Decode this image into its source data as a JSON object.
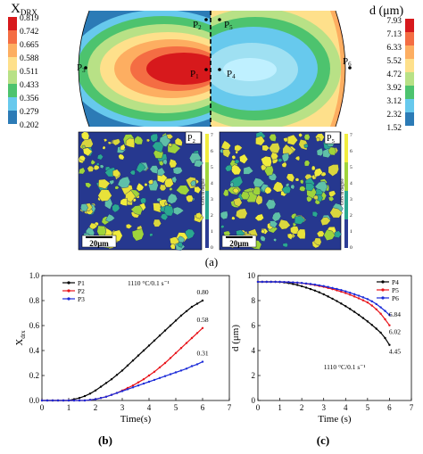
{
  "figure": {
    "panel_a_label": "(a)",
    "panel_b_label": "(b)",
    "panel_c_label": "(c)",
    "left_scale": {
      "title_main": "X",
      "title_sub": "DRX",
      "values": [
        "0.819",
        "0.742",
        "0.665",
        "0.588",
        "0.511",
        "0.433",
        "0.356",
        "0.279",
        "0.202"
      ]
    },
    "right_scale": {
      "title": "d (μm)",
      "values": [
        "7.93",
        "7.13",
        "6.33",
        "5.52",
        "4.72",
        "3.92",
        "3.12",
        "2.32",
        "1.52"
      ]
    },
    "points": {
      "p1": "P",
      "p1_sub": "1",
      "p2": "P",
      "p2_sub": "2",
      "p3": "P",
      "p3_sub": "3",
      "p4": "P",
      "p4_sub": "4",
      "p5": "P",
      "p5_sub": "5",
      "p6": "P",
      "p6_sub": "6"
    },
    "ebsd": {
      "left_tag": "P",
      "left_tag_sub": "2",
      "right_tag": "P",
      "right_tag_sub": "5",
      "scale_bar": "20μm",
      "gos_label": "GOS in degree",
      "gos_ticks": [
        "7",
        "6",
        "5",
        "4",
        "3",
        "2",
        "1",
        "0"
      ]
    },
    "colors": {
      "black": "#000000",
      "red": "#e8141b",
      "blue": "#1a2ad8"
    }
  },
  "chart_data": [
    {
      "type": "line",
      "annotation": "1110 °C/0.1 s⁻¹",
      "xlabel": "Time(s)",
      "ylabel_main": "X",
      "ylabel_sub": "drx",
      "xlim": [
        0,
        7
      ],
      "ylim": [
        0,
        1.0
      ],
      "xticks": [
        "0",
        "1",
        "2",
        "3",
        "4",
        "5",
        "6",
        "7"
      ],
      "yticks": [
        "0.0",
        "0.2",
        "0.4",
        "0.6",
        "0.8",
        "1.0"
      ],
      "legend_position": "top-left",
      "series": [
        {
          "name": "P1",
          "color": "#000000",
          "end_label": "0.80",
          "x": [
            0,
            0.2,
            0.4,
            0.6,
            0.8,
            1.0,
            1.2,
            1.4,
            1.6,
            1.8,
            2.0,
            2.2,
            2.4,
            2.6,
            2.8,
            3.0,
            3.2,
            3.4,
            3.6,
            3.8,
            4.0,
            4.2,
            4.4,
            4.6,
            4.8,
            5.0,
            5.2,
            5.4,
            5.6,
            5.8,
            6.0
          ],
          "y": [
            0,
            0,
            0,
            0,
            0,
            0,
            0.01,
            0.02,
            0.035,
            0.055,
            0.08,
            0.11,
            0.14,
            0.17,
            0.205,
            0.24,
            0.28,
            0.32,
            0.36,
            0.4,
            0.44,
            0.48,
            0.52,
            0.56,
            0.6,
            0.64,
            0.68,
            0.715,
            0.75,
            0.775,
            0.8
          ]
        },
        {
          "name": "P2",
          "color": "#e8141b",
          "end_label": "0.58",
          "x": [
            0,
            0.2,
            0.4,
            0.6,
            0.8,
            1.0,
            1.2,
            1.4,
            1.6,
            1.8,
            2.0,
            2.2,
            2.4,
            2.6,
            2.8,
            3.0,
            3.2,
            3.4,
            3.6,
            3.8,
            4.0,
            4.2,
            4.4,
            4.6,
            4.8,
            5.0,
            5.2,
            5.4,
            5.6,
            5.8,
            6.0
          ],
          "y": [
            0,
            0,
            0,
            0,
            0,
            0,
            0,
            0,
            0,
            0.005,
            0.01,
            0.02,
            0.03,
            0.045,
            0.06,
            0.08,
            0.1,
            0.12,
            0.145,
            0.17,
            0.2,
            0.23,
            0.265,
            0.3,
            0.34,
            0.38,
            0.42,
            0.46,
            0.5,
            0.54,
            0.58
          ]
        },
        {
          "name": "P3",
          "color": "#1a2ad8",
          "end_label": "0.31",
          "x": [
            0,
            0.2,
            0.4,
            0.6,
            0.8,
            1.0,
            1.2,
            1.4,
            1.6,
            1.8,
            2.0,
            2.2,
            2.4,
            2.6,
            2.8,
            3.0,
            3.2,
            3.4,
            3.6,
            3.8,
            4.0,
            4.2,
            4.4,
            4.6,
            4.8,
            5.0,
            5.2,
            5.4,
            5.6,
            5.8,
            6.0
          ],
          "y": [
            0,
            0,
            0,
            0,
            0,
            0,
            0,
            0,
            0,
            0.005,
            0.01,
            0.02,
            0.03,
            0.045,
            0.06,
            0.075,
            0.09,
            0.105,
            0.12,
            0.135,
            0.15,
            0.165,
            0.18,
            0.195,
            0.21,
            0.225,
            0.24,
            0.255,
            0.275,
            0.29,
            0.31
          ]
        }
      ]
    },
    {
      "type": "line",
      "annotation": "1110 °C/0.1 s⁻¹",
      "xlabel": "Time (s)",
      "ylabel": "d (μm)",
      "xlim": [
        0,
        7
      ],
      "ylim": [
        0,
        10
      ],
      "xticks": [
        "0",
        "1",
        "2",
        "3",
        "4",
        "5",
        "6",
        "7"
      ],
      "yticks": [
        "0",
        "2",
        "4",
        "6",
        "8",
        "10"
      ],
      "legend_position": "top-right",
      "series": [
        {
          "name": "P4",
          "color": "#000000",
          "end_label": "4.45",
          "x": [
            0,
            0.2,
            0.4,
            0.6,
            0.8,
            1.0,
            1.2,
            1.4,
            1.6,
            1.8,
            2.0,
            2.2,
            2.4,
            2.6,
            2.8,
            3.0,
            3.2,
            3.4,
            3.6,
            3.8,
            4.0,
            4.2,
            4.4,
            4.6,
            4.8,
            5.0,
            5.2,
            5.4,
            5.6,
            5.8,
            6.0
          ],
          "y": [
            9.5,
            9.5,
            9.5,
            9.5,
            9.5,
            9.48,
            9.45,
            9.4,
            9.33,
            9.25,
            9.15,
            9.04,
            8.92,
            8.8,
            8.66,
            8.5,
            8.33,
            8.15,
            7.96,
            7.76,
            7.55,
            7.33,
            7.1,
            6.86,
            6.6,
            6.33,
            6.05,
            5.75,
            5.43,
            5.0,
            4.45
          ]
        },
        {
          "name": "P5",
          "color": "#e8141b",
          "end_label": "6.02",
          "x": [
            0,
            0.2,
            0.4,
            0.6,
            0.8,
            1.0,
            1.2,
            1.4,
            1.6,
            1.8,
            2.0,
            2.2,
            2.4,
            2.6,
            2.8,
            3.0,
            3.2,
            3.4,
            3.6,
            3.8,
            4.0,
            4.2,
            4.4,
            4.6,
            4.8,
            5.0,
            5.2,
            5.4,
            5.6,
            5.8,
            6.0
          ],
          "y": [
            9.5,
            9.5,
            9.5,
            9.5,
            9.5,
            9.5,
            9.49,
            9.48,
            9.46,
            9.43,
            9.4,
            9.35,
            9.3,
            9.24,
            9.17,
            9.1,
            9.01,
            8.92,
            8.82,
            8.71,
            8.6,
            8.47,
            8.33,
            8.18,
            8.02,
            7.85,
            7.6,
            7.3,
            6.95,
            6.5,
            6.02
          ]
        },
        {
          "name": "P6",
          "color": "#1a2ad8",
          "end_label": "6.84",
          "x": [
            0,
            0.2,
            0.4,
            0.6,
            0.8,
            1.0,
            1.2,
            1.4,
            1.6,
            1.8,
            2.0,
            2.2,
            2.4,
            2.6,
            2.8,
            3.0,
            3.2,
            3.4,
            3.6,
            3.8,
            4.0,
            4.2,
            4.4,
            4.6,
            4.8,
            5.0,
            5.2,
            5.4,
            5.6,
            5.8,
            6.0
          ],
          "y": [
            9.5,
            9.5,
            9.5,
            9.5,
            9.5,
            9.5,
            9.49,
            9.48,
            9.46,
            9.44,
            9.41,
            9.37,
            9.33,
            9.28,
            9.22,
            9.16,
            9.09,
            9.01,
            8.93,
            8.84,
            8.74,
            8.63,
            8.51,
            8.39,
            8.26,
            8.12,
            7.94,
            7.72,
            7.46,
            7.17,
            6.84
          ]
        }
      ]
    }
  ]
}
